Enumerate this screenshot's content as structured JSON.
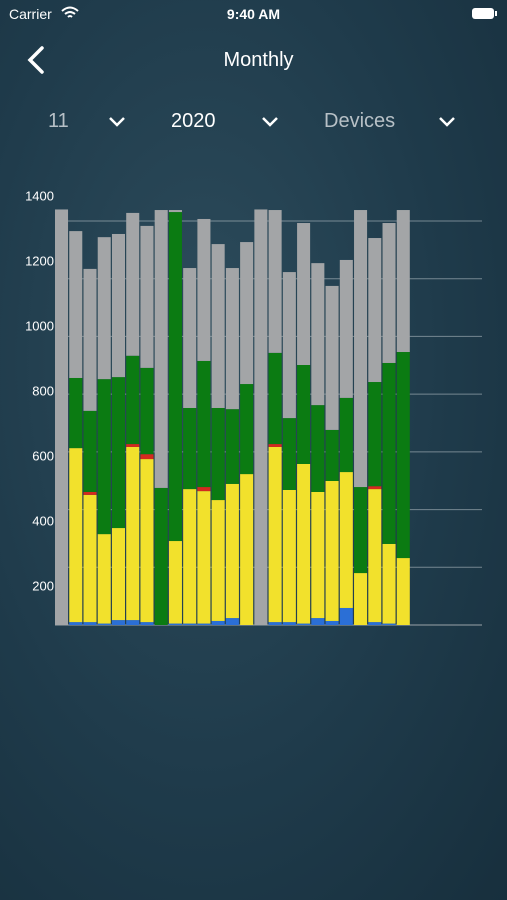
{
  "status_bar": {
    "carrier": "Carrier",
    "time": "9:40 AM"
  },
  "header": {
    "title": "Monthly"
  },
  "filters": [
    {
      "label": "11"
    },
    {
      "label": "2020"
    },
    {
      "label": "Devices"
    }
  ],
  "chart_data": {
    "type": "stacked_bar",
    "categories": [
      null,
      null,
      null,
      null,
      null,
      null,
      null,
      null,
      null,
      null,
      null,
      null,
      null,
      null,
      null,
      null,
      null,
      null,
      null,
      null,
      null,
      null,
      null,
      null,
      null
    ],
    "series": [
      {
        "color": "#2b6fd6",
        "values": [
          0,
          10,
          10,
          5,
          17,
          17,
          10,
          0,
          5,
          5,
          5,
          14,
          24,
          0,
          0,
          10,
          10,
          5,
          24,
          14,
          59,
          0,
          10,
          5,
          0
        ]
      },
      {
        "color": "#f2e12c",
        "values": [
          0,
          603,
          441,
          310,
          319,
          600,
          565,
          0,
          286,
          466,
          459,
          419,
          465,
          523,
          0,
          607,
          458,
          553,
          437,
          485,
          471,
          180,
          461,
          276,
          232
        ]
      },
      {
        "color": "#d42a1e",
        "values": [
          0,
          0,
          10,
          0,
          0,
          10,
          17,
          0,
          0,
          0,
          14,
          0,
          0,
          0,
          0,
          10,
          0,
          0,
          0,
          0,
          0,
          0,
          10,
          0,
          0
        ]
      },
      {
        "color": "#0b7b12",
        "values": [
          0,
          243,
          281,
          537,
          523,
          306,
          299,
          475,
          1140,
          281,
          437,
          319,
          259,
          312,
          0,
          316,
          249,
          343,
          301,
          177,
          257,
          298,
          361,
          627,
          714
        ]
      },
      {
        "color": "#a3a5a7",
        "values": [
          1440,
          509,
          492,
          492,
          496,
          495,
          492,
          963,
          7,
          485,
          492,
          568,
          489,
          492,
          1440,
          495,
          506,
          492,
          492,
          499,
          478,
          960,
          499,
          485,
          492
        ]
      }
    ],
    "ylim": [
      0,
      1400
    ],
    "yticks": [
      200,
      400,
      600,
      800,
      1000,
      1200,
      1400
    ],
    "grid": true
  }
}
